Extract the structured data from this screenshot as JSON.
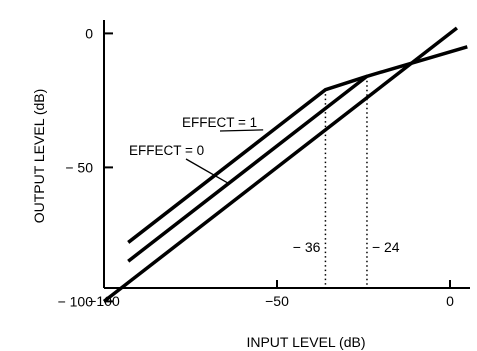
{
  "chart_data": {
    "type": "line",
    "xlabel": "INPUT LEVEL   (dB)",
    "ylabel": "OUTPUT LEVEL   (dB)",
    "xlim": [
      -100,
      2
    ],
    "ylim": [
      -100,
      5
    ],
    "x_ticks": [
      {
        "value": -100,
        "label": "−100"
      },
      {
        "value": -50,
        "label": "−50"
      },
      {
        "value": 0,
        "label": "0"
      }
    ],
    "y_ticks": [
      {
        "value": -100,
        "label": "− 100"
      },
      {
        "value": -50,
        "label": "− 50"
      },
      {
        "value": 0,
        "label": "0"
      }
    ],
    "grid": false,
    "legend": "none",
    "series": [
      {
        "points": [
          [
            -100,
            -100
          ],
          [
            2,
            2
          ]
        ]
      },
      {
        "points": [
          [
            -93,
            -85
          ],
          [
            -24,
            -16
          ],
          [
            5,
            -5
          ]
        ]
      },
      {
        "points": [
          [
            -93,
            -78
          ],
          [
            -36,
            -21
          ],
          [
            -24,
            -16
          ]
        ]
      }
    ],
    "labels": [
      {
        "text": "EFFECT = 1",
        "pointer_x": -54,
        "pointer_y": -36
      },
      {
        "text": "EFFECT = 0",
        "pointer_x": -64,
        "pointer_y": -56
      }
    ],
    "markers": [
      {
        "x": -36,
        "text": "− 36"
      },
      {
        "x": -24,
        "text": "− 24"
      }
    ],
    "line_color": "#000000"
  }
}
